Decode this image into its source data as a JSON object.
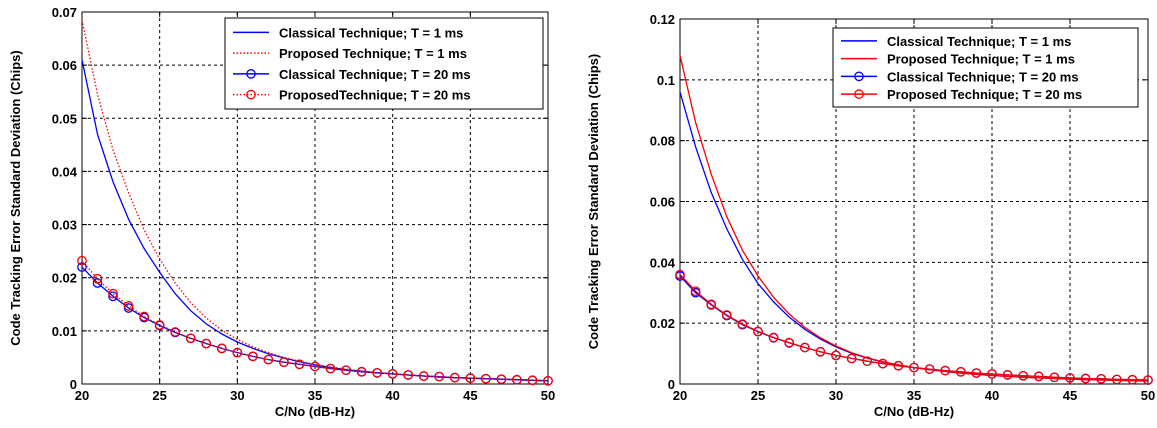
{
  "chart_data": [
    {
      "type": "line",
      "xlabel": "C/No (dB-Hz)",
      "ylabel": "Code Tracking Error Standard Deviation (Chips)",
      "xlim": [
        20,
        50
      ],
      "ylim": [
        0,
        0.07
      ],
      "xticks": [
        "20",
        "25",
        "30",
        "35",
        "40",
        "45",
        "50"
      ],
      "yticks": [
        "0",
        "0.01",
        "0.02",
        "0.03",
        "0.04",
        "0.05",
        "0.06",
        "0.07"
      ],
      "grid": true,
      "legend_position": "top-right",
      "series": [
        {
          "name": "Classical Technique; T = 1 ms",
          "color": "#0000ff",
          "line": "solid",
          "marker": "none",
          "x": [
            20,
            21,
            22,
            23,
            24,
            25,
            26,
            27,
            28,
            29,
            30,
            31,
            32,
            33,
            34,
            35,
            36,
            37,
            38,
            39,
            40,
            41,
            42,
            43,
            44,
            45,
            46,
            47,
            48,
            49,
            50
          ],
          "y": [
            0.061,
            0.047,
            0.038,
            0.031,
            0.0255,
            0.021,
            0.017,
            0.0138,
            0.0113,
            0.0094,
            0.0079,
            0.0067,
            0.0057,
            0.0049,
            0.0042,
            0.0036,
            0.0031,
            0.0027,
            0.0024,
            0.0021,
            0.0019,
            0.0017,
            0.0015,
            0.0013,
            0.0012,
            0.0011,
            0.001,
            0.0009,
            0.0008,
            0.0007,
            0.0006
          ]
        },
        {
          "name": "Proposed Technique; T = 1 ms",
          "color": "#ff0000",
          "line": "dotted",
          "marker": "none",
          "x": [
            20,
            21,
            22,
            23,
            24,
            25,
            26,
            27,
            28,
            29,
            30,
            31,
            32,
            33,
            34,
            35,
            36,
            37,
            38,
            39,
            40,
            41,
            42,
            43,
            44,
            45,
            46,
            47,
            48,
            49,
            50
          ],
          "y": [
            0.0685,
            0.0545,
            0.044,
            0.036,
            0.029,
            0.0235,
            0.019,
            0.0153,
            0.0124,
            0.0101,
            0.0084,
            0.007,
            0.0059,
            0.005,
            0.0043,
            0.0037,
            0.0032,
            0.0028,
            0.0024,
            0.0021,
            0.0019,
            0.0017,
            0.0015,
            0.0013,
            0.0012,
            0.0011,
            0.001,
            0.0009,
            0.0008,
            0.0007,
            0.0006
          ]
        },
        {
          "name": "Classical Technique; T = 20 ms",
          "color": "#0000ff",
          "line": "solid",
          "marker": "circle",
          "x": [
            20,
            21,
            22,
            23,
            24,
            25,
            26,
            27,
            28,
            29,
            30,
            31,
            32,
            33,
            34,
            35,
            36,
            37,
            38,
            39,
            40,
            41,
            42,
            43,
            44,
            45,
            46,
            47,
            48,
            49,
            50
          ],
          "y": [
            0.022,
            0.019,
            0.0165,
            0.0143,
            0.0125,
            0.011,
            0.0097,
            0.0086,
            0.0076,
            0.0067,
            0.0059,
            0.0052,
            0.0046,
            0.0041,
            0.0037,
            0.0033,
            0.0029,
            0.0026,
            0.0023,
            0.0021,
            0.0019,
            0.0017,
            0.0015,
            0.0014,
            0.0012,
            0.0011,
            0.001,
            0.0009,
            0.0008,
            0.0007,
            0.0006
          ]
        },
        {
          "name": "ProposedTechnique; T = 20 ms",
          "color": "#ff0000",
          "line": "dotted",
          "marker": "circle",
          "x": [
            20,
            21,
            22,
            23,
            24,
            25,
            26,
            27,
            28,
            29,
            30,
            31,
            32,
            33,
            34,
            35,
            36,
            37,
            38,
            39,
            40,
            41,
            42,
            43,
            44,
            45,
            46,
            47,
            48,
            49,
            50
          ],
          "y": [
            0.0232,
            0.0198,
            0.017,
            0.0147,
            0.0127,
            0.0111,
            0.0098,
            0.0086,
            0.0076,
            0.0067,
            0.0059,
            0.0052,
            0.0046,
            0.0041,
            0.0037,
            0.0033,
            0.0029,
            0.0026,
            0.0023,
            0.0021,
            0.0019,
            0.0017,
            0.0015,
            0.0014,
            0.0012,
            0.0011,
            0.001,
            0.0009,
            0.0008,
            0.0007,
            0.0006
          ]
        }
      ]
    },
    {
      "type": "line",
      "xlabel": "C/No (dB-Hz)",
      "ylabel": "Code Tracking Error Standard Deviation (Chips)",
      "xlim": [
        20,
        50
      ],
      "ylim": [
        0,
        0.12
      ],
      "xticks": [
        "20",
        "25",
        "30",
        "35",
        "40",
        "45",
        "50"
      ],
      "yticks": [
        "0",
        "0.02",
        "0.04",
        "0.06",
        "0.08",
        "0.1",
        "0.12"
      ],
      "grid": true,
      "legend_position": "top-right",
      "series": [
        {
          "name": "Classical Technique; T = 1 ms",
          "color": "#0000ff",
          "line": "solid",
          "marker": "none",
          "x": [
            20,
            21,
            22,
            23,
            24,
            25,
            26,
            27,
            28,
            29,
            30,
            31,
            32,
            33,
            34,
            35,
            36,
            37,
            38,
            39,
            40,
            41,
            42,
            43,
            44,
            45,
            46,
            47,
            48,
            49,
            50
          ],
          "y": [
            0.096,
            0.078,
            0.063,
            0.051,
            0.041,
            0.033,
            0.027,
            0.022,
            0.018,
            0.0148,
            0.0122,
            0.0101,
            0.0085,
            0.0072,
            0.0062,
            0.0054,
            0.0047,
            0.0041,
            0.0036,
            0.0032,
            0.0028,
            0.0025,
            0.0022,
            0.002,
            0.0018,
            0.0016,
            0.0014,
            0.0013,
            0.0012,
            0.0011,
            0.001
          ]
        },
        {
          "name": "Proposed Technique; T = 1 ms",
          "color": "#ff0000",
          "line": "solid",
          "marker": "none",
          "x": [
            20,
            21,
            22,
            23,
            24,
            25,
            26,
            27,
            28,
            29,
            30,
            31,
            32,
            33,
            34,
            35,
            36,
            37,
            38,
            39,
            40,
            41,
            42,
            43,
            44,
            45,
            46,
            47,
            48,
            49,
            50
          ],
          "y": [
            0.108,
            0.086,
            0.069,
            0.055,
            0.044,
            0.0355,
            0.0285,
            0.023,
            0.0186,
            0.0152,
            0.0125,
            0.0103,
            0.0086,
            0.0073,
            0.0063,
            0.0054,
            0.0047,
            0.0041,
            0.0036,
            0.0032,
            0.0028,
            0.0025,
            0.0022,
            0.002,
            0.0018,
            0.0016,
            0.0014,
            0.0013,
            0.0012,
            0.0011,
            0.001
          ]
        },
        {
          "name": "Classical Technique; T = 20 ms",
          "color": "#0000ff",
          "line": "solid",
          "marker": "circle",
          "x": [
            20,
            21,
            22,
            23,
            24,
            25,
            26,
            27,
            28,
            29,
            30,
            31,
            32,
            33,
            34,
            35,
            36,
            37,
            38,
            39,
            40,
            41,
            42,
            43,
            44,
            45,
            46,
            47,
            48,
            49,
            50
          ],
          "y": [
            0.0355,
            0.03,
            0.026,
            0.0225,
            0.0195,
            0.0172,
            0.0152,
            0.0135,
            0.012,
            0.0106,
            0.0094,
            0.0084,
            0.0075,
            0.0067,
            0.006,
            0.0054,
            0.0049,
            0.0044,
            0.004,
            0.0036,
            0.0033,
            0.003,
            0.0027,
            0.0025,
            0.0022,
            0.002,
            0.0018,
            0.0017,
            0.0015,
            0.0014,
            0.0013
          ]
        },
        {
          "name": "Proposed Technique; T = 20 ms",
          "color": "#ff0000",
          "line": "solid",
          "marker": "circle",
          "x": [
            20,
            21,
            22,
            23,
            24,
            25,
            26,
            27,
            28,
            29,
            30,
            31,
            32,
            33,
            34,
            35,
            36,
            37,
            38,
            39,
            40,
            41,
            42,
            43,
            44,
            45,
            46,
            47,
            48,
            49,
            50
          ],
          "y": [
            0.036,
            0.0305,
            0.0262,
            0.0227,
            0.0197,
            0.0173,
            0.0153,
            0.0136,
            0.012,
            0.0106,
            0.0094,
            0.0084,
            0.0075,
            0.0067,
            0.006,
            0.0054,
            0.0049,
            0.0044,
            0.004,
            0.0036,
            0.0033,
            0.003,
            0.0027,
            0.0025,
            0.0022,
            0.002,
            0.0018,
            0.0017,
            0.0015,
            0.0014,
            0.0013
          ]
        }
      ]
    }
  ]
}
